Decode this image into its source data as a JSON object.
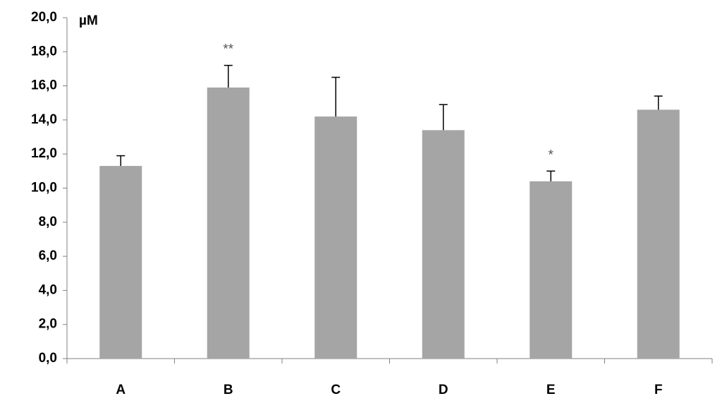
{
  "chart_data": {
    "type": "bar",
    "y_label": "µM",
    "categories": [
      "A",
      "B",
      "C",
      "D",
      "E",
      "F"
    ],
    "values": [
      11.3,
      15.9,
      14.2,
      13.4,
      10.4,
      14.6
    ],
    "errors": [
      0.6,
      1.3,
      2.3,
      1.5,
      0.6,
      0.8
    ],
    "significance": [
      null,
      "**",
      null,
      null,
      "*",
      null
    ],
    "color": "#a5a5a5",
    "ylim": [
      0,
      20
    ],
    "yticks": [
      {
        "value": 0,
        "label": "0,0"
      },
      {
        "value": 2,
        "label": "2,0"
      },
      {
        "value": 4,
        "label": "4,0"
      },
      {
        "value": 6,
        "label": "6,0"
      },
      {
        "value": 8,
        "label": "8,0"
      },
      {
        "value": 10,
        "label": "10,0"
      },
      {
        "value": 12,
        "label": "12,0"
      },
      {
        "value": 14,
        "label": "14,0"
      },
      {
        "value": 16,
        "label": "16,0"
      },
      {
        "value": 18,
        "label": "18,0"
      },
      {
        "value": 20,
        "label": "20,0"
      }
    ]
  }
}
